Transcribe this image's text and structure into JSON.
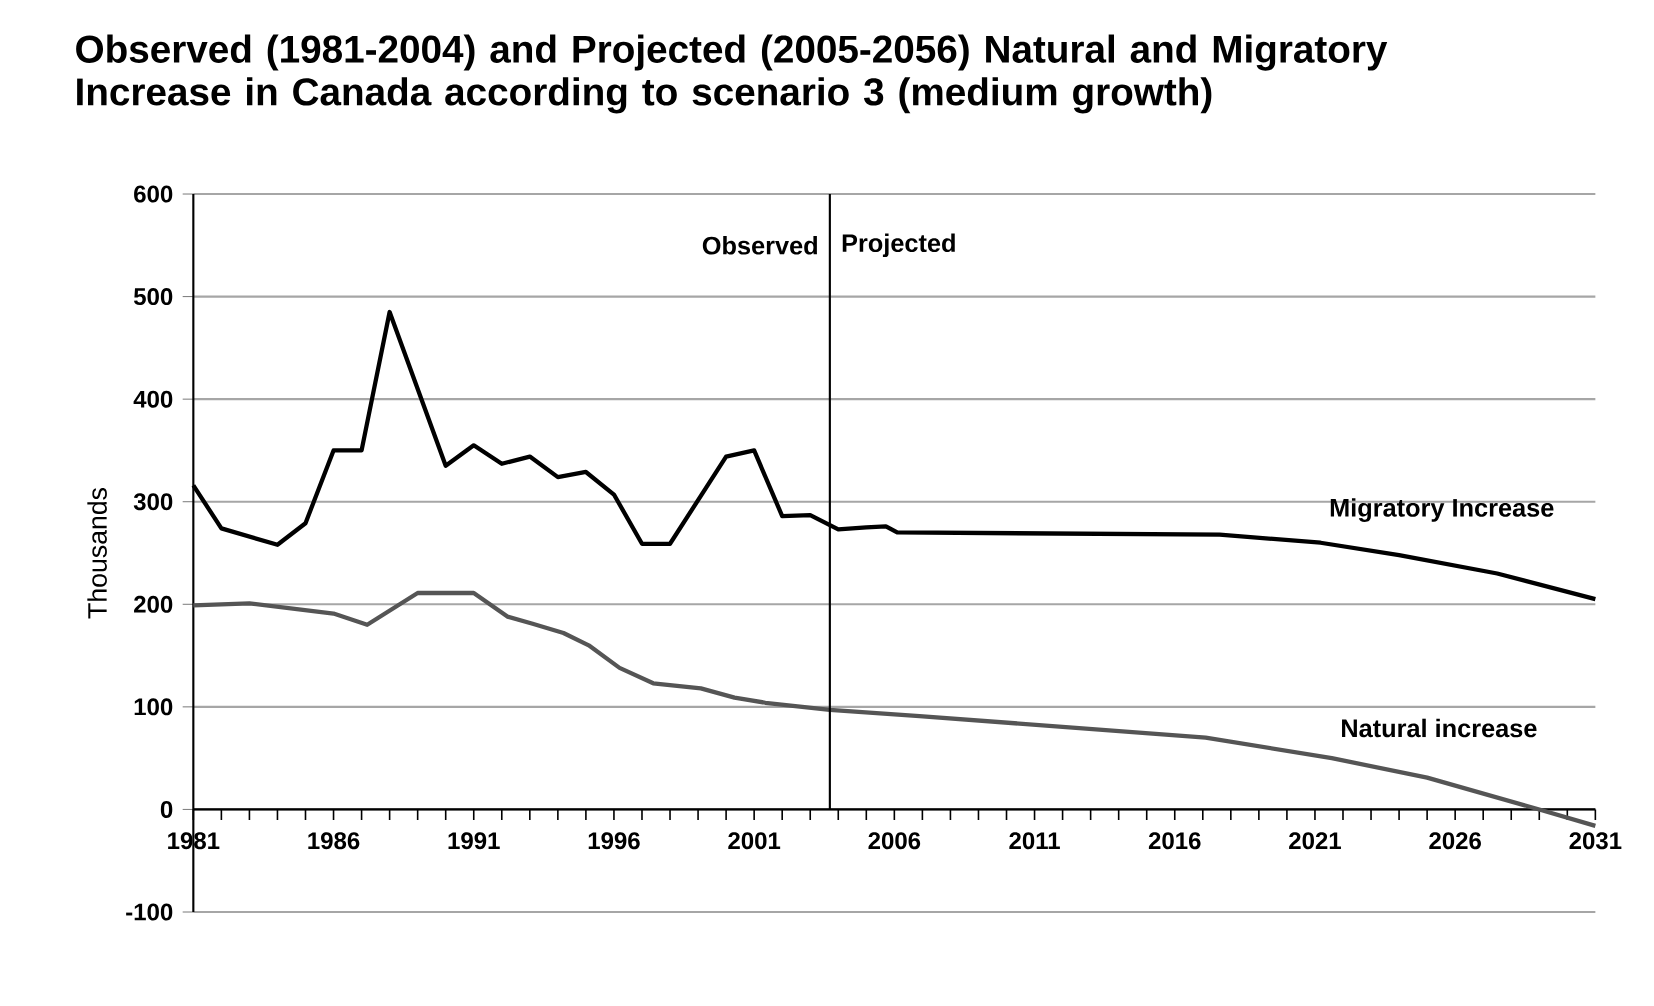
{
  "chart_data": {
    "type": "line",
    "title": "Observed (1981-2004) and Projected (2005-2056) Natural and Migratory Increase in Canada according to scenario 3 (medium growth)",
    "ylabel": "Thousands",
    "xlim": [
      1981,
      2031
    ],
    "xticks": [
      1981,
      1986,
      1991,
      1996,
      2001,
      2006,
      2011,
      2016,
      2021,
      2026,
      2031
    ],
    "ylim": [
      -100,
      600
    ],
    "yticks": [
      -100,
      0,
      100,
      200,
      300,
      400,
      500,
      600
    ],
    "grid": "y",
    "legend": false,
    "marker": "none",
    "line_style": "solid",
    "ref_lines": [
      {
        "axis": "x",
        "value": 2003.7,
        "color": "#000000"
      }
    ],
    "annotations": [
      {
        "text": "Observed",
        "x": 2003.7,
        "y": 550
      },
      {
        "text": "Projected",
        "x": 2003.7,
        "y": 550
      }
    ],
    "series": [
      {
        "name": "Migratory Increase",
        "color": "#000000",
        "x": [
          1981,
          1982,
          1984,
          1985,
          1986,
          1987,
          1988,
          1990,
          1991,
          1992,
          1993,
          1994,
          1995,
          1996,
          1997,
          1998,
          2000,
          2001,
          2002,
          2003,
          2004,
          2005,
          2005.7,
          2006.1,
          2017.6,
          2021.2,
          2024,
          2027.5,
          2031
        ],
        "values": [
          316,
          274,
          258,
          279,
          350,
          350,
          485,
          335,
          355,
          337,
          344,
          324,
          329,
          307,
          259,
          259,
          344,
          350,
          286,
          287,
          273,
          275,
          276,
          270,
          268,
          260,
          248,
          230,
          205
        ]
      },
      {
        "name": "Natural increase",
        "color": "#555555",
        "x": [
          1981,
          1983,
          1986,
          1987.2,
          1989,
          1991,
          1992.2,
          1993.1,
          1994.2,
          1995.1,
          1996.2,
          1997.4,
          1999.1,
          2000.3,
          2001.4,
          2003.7,
          2006.9,
          2017.1,
          2021.6,
          2025,
          2029,
          2031
        ],
        "values": [
          199,
          201,
          191,
          180,
          211,
          211,
          188,
          181,
          172,
          160,
          138,
          123,
          118,
          109,
          104,
          97,
          91,
          70,
          50,
          31,
          0,
          -16
        ]
      }
    ]
  }
}
